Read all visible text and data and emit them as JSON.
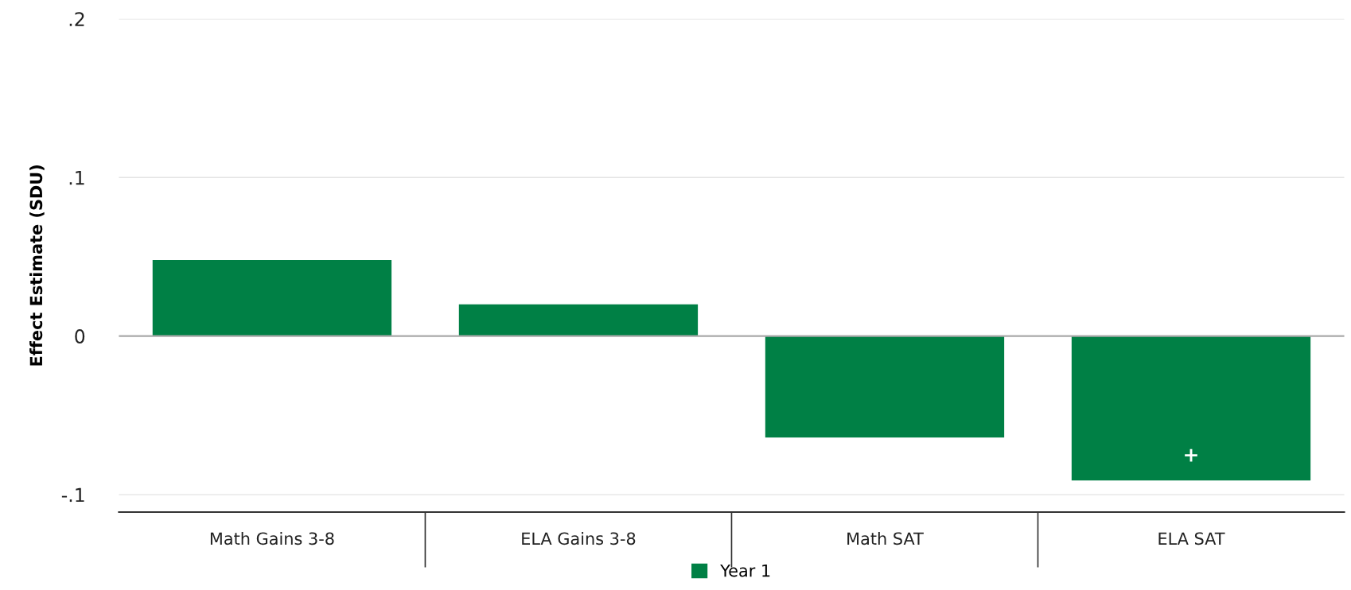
{
  "chart_data": {
    "type": "bar",
    "ylabel": "Effect Estimate (SDU)",
    "categories": [
      "Math Gains 3-8",
      "ELA Gains 3-8",
      "Math SAT",
      "ELA SAT"
    ],
    "series": [
      {
        "name": "Year 1",
        "color": "#008045",
        "values": [
          0.048,
          0.02,
          -0.064,
          -0.091
        ]
      }
    ],
    "ylim": [
      -0.111,
      0.2
    ],
    "yticks": [
      {
        "value": -0.1,
        "label": "-.1"
      },
      {
        "value": 0,
        "label": "0"
      },
      {
        "value": 0.1,
        "label": ".1"
      },
      {
        "value": 0.2,
        "label": ".2"
      }
    ],
    "ref_lines": [
      {
        "axis": "y",
        "value": 0,
        "color": "#aaaaaa"
      }
    ],
    "annotations": [
      {
        "text": "+",
        "x": "ELA SAT",
        "y": -0.091
      }
    ],
    "grid": "y",
    "legend": "bottom"
  }
}
